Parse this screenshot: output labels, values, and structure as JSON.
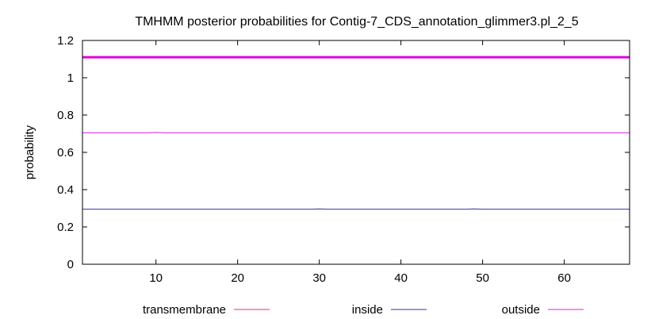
{
  "chart_data": {
    "type": "line",
    "title": "TMHMM posterior probabilities for Contig-7_CDS_annotation_glimmer3.pl_2_5",
    "xlabel": "",
    "ylabel": "probability",
    "xlim": [
      1,
      68
    ],
    "ylim": [
      0,
      1.2
    ],
    "xticks": [
      10,
      20,
      30,
      40,
      50,
      60
    ],
    "yticks": [
      0,
      0.2,
      0.4,
      0.6,
      0.8,
      1,
      1.2
    ],
    "ytick_labels": [
      "0",
      "0.2",
      "0.4",
      "0.6",
      "0.8",
      "1",
      "1.2"
    ],
    "grid": false,
    "legend_position": "bottom",
    "series": [
      {
        "name": "transmembrane",
        "color": "#e0307a",
        "x": [
          1,
          68
        ],
        "y": [
          0,
          0
        ]
      },
      {
        "name": "inside",
        "color": "#3333aa",
        "x": [
          1,
          29,
          30,
          31,
          48,
          49,
          50,
          68
        ],
        "y": [
          0.295,
          0.295,
          0.297,
          0.295,
          0.295,
          0.297,
          0.295,
          0.295
        ]
      },
      {
        "name": "outside",
        "color": "#dd22dd",
        "x": [
          1,
          9,
          10,
          11,
          68
        ],
        "y": [
          0.705,
          0.705,
          0.707,
          0.705,
          0.705
        ]
      }
    ],
    "reference_line": {
      "color": "#dd00dd",
      "y": 1.11
    }
  }
}
